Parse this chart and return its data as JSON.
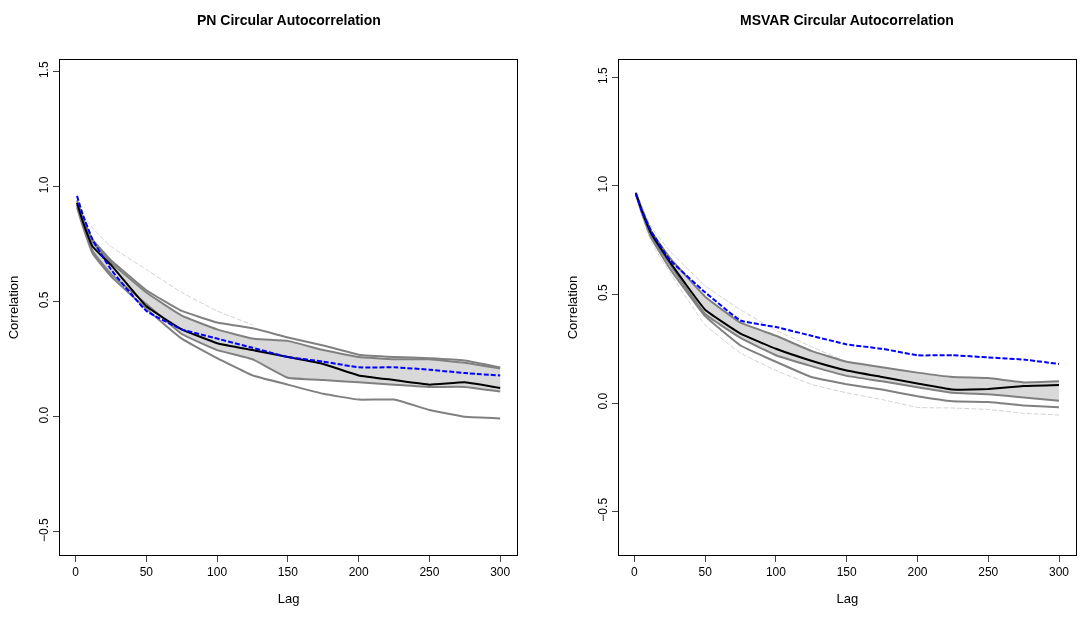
{
  "chart_data": [
    {
      "type": "line",
      "title": "PN Circular Autocorrelation",
      "xlabel": "Lag",
      "ylabel": "Correlation",
      "xlim": [
        -11,
        312
      ],
      "ylim": [
        -0.6,
        1.55
      ],
      "xticks": [
        0,
        50,
        100,
        150,
        200,
        250,
        300
      ],
      "yticks": [
        {
          "value": -0.5,
          "label": "−0.5"
        },
        {
          "value": 0,
          "label": "0.0"
        },
        {
          "value": 0.5,
          "label": "0.5"
        },
        {
          "value": 1,
          "label": "1.0"
        },
        {
          "value": 1.5,
          "label": "1.5"
        }
      ],
      "marker": "none",
      "x": [
        1,
        5,
        12,
        25,
        50,
        75,
        100,
        125,
        150,
        175,
        200,
        225,
        250,
        275,
        300
      ],
      "series": [
        {
          "color": "#d3d3d3",
          "line_style": "dashed",
          "values": [
            null,
            0.88,
            0.82,
            0.74,
            0.64,
            0.54,
            0.46,
            0.4,
            null,
            null,
            null,
            null,
            null,
            null,
            null
          ]
        },
        {
          "color": "#808080",
          "line_style": "solid",
          "values": [
            0.94,
            0.87,
            0.77,
            0.68,
            0.55,
            0.46,
            0.41,
            0.385,
            0.345,
            0.31,
            0.27,
            0.26,
            0.255,
            0.245,
            0.215
          ]
        },
        {
          "color": "#808080",
          "line_style": "solid",
          "values": [
            0.91,
            0.83,
            0.71,
            0.61,
            0.47,
            0.34,
            0.255,
            0.18,
            0.14,
            0.1,
            0.075,
            0.075,
            0.03,
            0.0,
            -0.007
          ]
        },
        {
          "color": "#808080",
          "line_style": "solid",
          "values": [
            0.92,
            0.84,
            0.72,
            0.62,
            0.49,
            0.36,
            0.29,
            0.25,
            0.17,
            0.16,
            0.15,
            0.14,
            0.13,
            0.13,
            0.11
          ]
        },
        {
          "color": "#808080",
          "line_style": "solid",
          "values": [
            0.93,
            0.86,
            0.76,
            0.67,
            0.54,
            0.44,
            0.38,
            0.34,
            0.33,
            0.29,
            0.26,
            0.25,
            0.25,
            0.235,
            0.21
          ]
        },
        {
          "color": "#000000",
          "line_style": "solid",
          "values": [
            0.93,
            0.85,
            0.74,
            0.66,
            0.48,
            0.38,
            0.32,
            0.29,
            0.26,
            0.23,
            0.18,
            0.16,
            0.14,
            0.15,
            0.125
          ],
          "lower": [
            0.92,
            0.84,
            0.72,
            0.62,
            0.49,
            0.36,
            0.29,
            0.25,
            0.17,
            0.16,
            0.15,
            0.14,
            0.13,
            0.13,
            0.11
          ],
          "upper": [
            0.93,
            0.86,
            0.76,
            0.67,
            0.54,
            0.44,
            0.38,
            0.34,
            0.33,
            0.29,
            0.26,
            0.25,
            0.25,
            0.235,
            0.21
          ]
        },
        {
          "color": "#0000ff",
          "line_style": "dashed",
          "values": [
            0.96,
            0.88,
            0.77,
            0.64,
            0.46,
            0.38,
            0.34,
            0.3,
            0.26,
            0.24,
            0.215,
            0.215,
            0.205,
            0.19,
            0.18
          ]
        }
      ]
    },
    {
      "type": "line",
      "title": "MSVAR Circular Autocorrelation",
      "xlabel": "Lag",
      "ylabel": "Correlation",
      "xlim": [
        -11,
        312
      ],
      "ylim": [
        -0.7,
        1.58
      ],
      "xticks": [
        0,
        50,
        100,
        150,
        200,
        250,
        300
      ],
      "yticks": [
        {
          "value": -0.5,
          "label": "−0.5"
        },
        {
          "value": 0,
          "label": "0.0"
        },
        {
          "value": 0.5,
          "label": "0.5"
        },
        {
          "value": 1,
          "label": "1.0"
        },
        {
          "value": 1.5,
          "label": "1.5"
        }
      ],
      "marker": "none",
      "x": [
        1,
        5,
        12,
        25,
        50,
        75,
        100,
        125,
        150,
        175,
        200,
        225,
        250,
        275,
        300
      ],
      "series": [
        {
          "color": "#d3d3d3",
          "line_style": "dashed",
          "values": [
            0.97,
            0.91,
            0.81,
            0.7,
            0.54,
            0.43,
            0.335,
            0.26,
            0.19,
            0.15,
            0.11,
            0.1,
            0.086,
            0.086,
            0.078
          ]
        },
        {
          "color": "#d3d3d3",
          "line_style": "dashed",
          "values": [
            0.96,
            0.87,
            0.74,
            0.6,
            0.36,
            0.23,
            0.15,
            0.086,
            0.047,
            0.016,
            -0.02,
            -0.023,
            -0.03,
            -0.047,
            -0.055
          ]
        },
        {
          "color": "#808080",
          "line_style": "solid",
          "values": [
            0.965,
            0.88,
            0.76,
            0.62,
            0.4,
            0.265,
            0.19,
            0.12,
            0.086,
            0.062,
            0.031,
            0.008,
            0.005,
            -0.011,
            -0.02
          ]
        },
        {
          "color": "#808080",
          "line_style": "solid",
          "values": [
            0.96,
            0.89,
            0.77,
            0.64,
            0.41,
            0.3,
            0.22,
            0.17,
            0.125,
            0.1,
            0.073,
            0.047,
            0.04,
            0.026,
            0.01
          ]
        },
        {
          "color": "#808080",
          "line_style": "solid",
          "values": [
            0.97,
            0.9,
            0.79,
            0.67,
            0.49,
            0.37,
            0.31,
            0.24,
            0.19,
            0.165,
            0.14,
            0.12,
            0.115,
            0.095,
            0.1
          ]
        },
        {
          "color": "#000000",
          "line_style": "solid",
          "values": [
            0.966,
            0.89,
            0.78,
            0.65,
            0.43,
            0.32,
            0.25,
            0.195,
            0.15,
            0.12,
            0.09,
            0.062,
            0.065,
            0.078,
            0.083
          ],
          "lower": [
            0.96,
            0.89,
            0.77,
            0.64,
            0.41,
            0.3,
            0.22,
            0.17,
            0.125,
            0.1,
            0.073,
            0.047,
            0.04,
            0.026,
            0.01
          ],
          "upper": [
            0.97,
            0.9,
            0.79,
            0.67,
            0.49,
            0.37,
            0.31,
            0.24,
            0.19,
            0.165,
            0.14,
            0.12,
            0.115,
            0.095,
            0.1
          ]
        },
        {
          "color": "#0000ff",
          "line_style": "dashed",
          "values": [
            0.966,
            0.89,
            0.79,
            0.66,
            0.51,
            0.38,
            0.35,
            0.31,
            0.27,
            0.25,
            0.22,
            0.22,
            0.21,
            0.2,
            0.18
          ]
        }
      ]
    }
  ]
}
